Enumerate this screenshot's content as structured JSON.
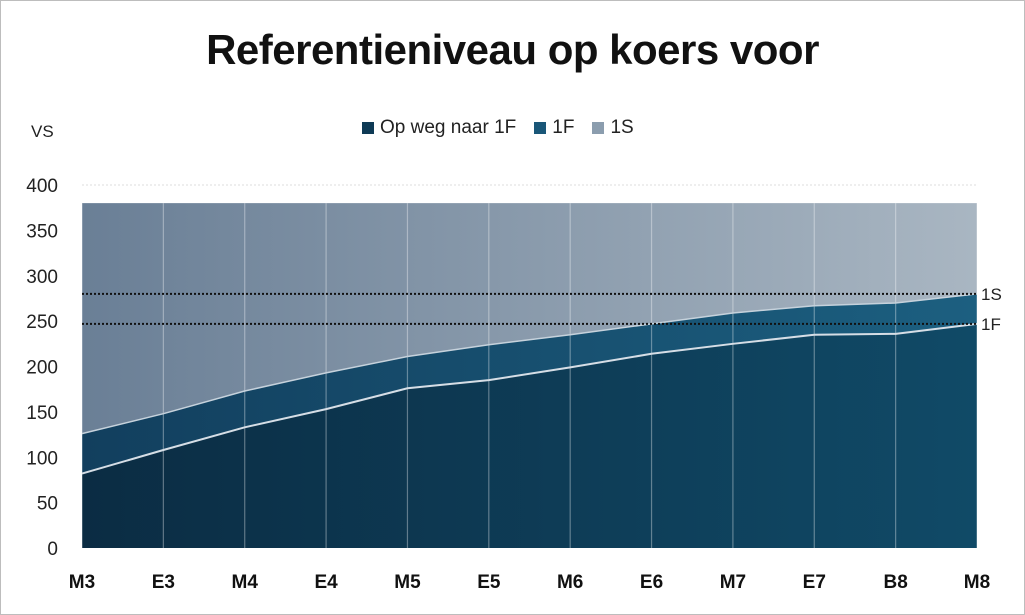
{
  "chart_data": {
    "type": "area",
    "title": "Referentieniveau op koers voor",
    "ylabel": "VS",
    "xlabel": "",
    "ylim": [
      0,
      400
    ],
    "yticks": [
      0,
      50,
      100,
      150,
      200,
      250,
      300,
      350,
      400
    ],
    "categories": [
      "M3",
      "E3",
      "M4",
      "E4",
      "M5",
      "E5",
      "M6",
      "E6",
      "M7",
      "E7",
      "B8",
      "M8"
    ],
    "stacked": true,
    "series": [
      {
        "name": "Op weg naar 1F",
        "values": [
          82,
          108,
          133,
          153,
          176,
          185,
          199,
          214,
          225,
          235,
          236,
          247
        ],
        "color": "#0e3a55"
      },
      {
        "name": "1F",
        "values": [
          44,
          40,
          40,
          40,
          35,
          39,
          36,
          33,
          34,
          32,
          34,
          33
        ],
        "color": "#1a5778"
      },
      {
        "name": "1S",
        "values": [
          254,
          232,
          207,
          187,
          169,
          156,
          145,
          133,
          121,
          113,
          110,
          100
        ],
        "color": "#8b9dae"
      }
    ],
    "series_top": 380,
    "reference_lines": [
      {
        "label": "1S",
        "value": 280
      },
      {
        "label": "1F",
        "value": 247
      }
    ],
    "legend_position": "top",
    "grid": "vertical"
  }
}
